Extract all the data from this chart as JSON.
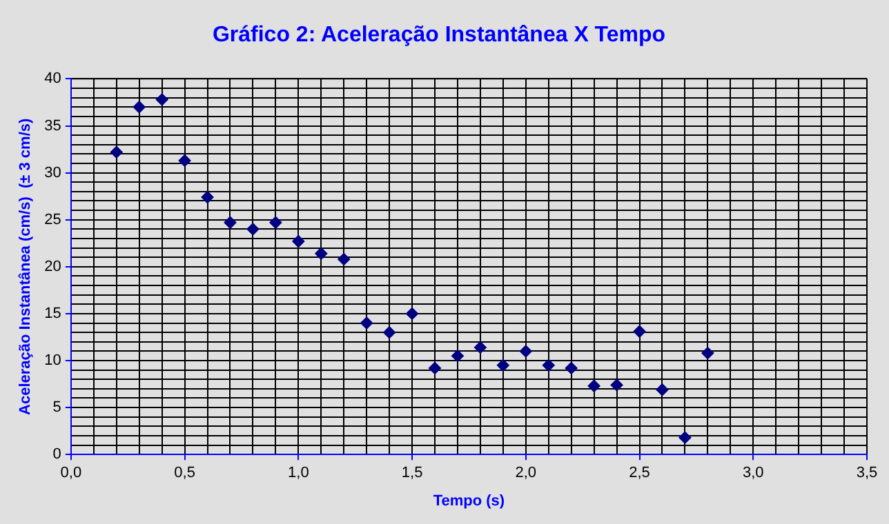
{
  "chart_data": {
    "type": "scatter",
    "title": "Gráfico 2: Aceleração Instantânea X Tempo",
    "xlabel": "Tempo (s)",
    "ylabel": "Aceleração Instantânea (cm/s)  (± 3 cm/s)",
    "x": [
      0.2,
      0.3,
      0.4,
      0.5,
      0.6,
      0.7,
      0.8,
      0.9,
      1.0,
      1.1,
      1.2,
      1.3,
      1.4,
      1.5,
      1.6,
      1.7,
      1.8,
      1.9,
      2.0,
      2.1,
      2.2,
      2.3,
      2.4,
      2.5,
      2.6,
      2.7,
      2.8
    ],
    "series": [
      {
        "color": "#000080",
        "values": [
          32.2,
          37,
          37.8,
          31.3,
          27.4,
          24.7,
          24,
          24.7,
          22.7,
          21.4,
          20.8,
          14,
          13,
          15,
          9.2,
          10.5,
          11.4,
          9.5,
          11,
          9.5,
          9.2,
          7.3,
          7.4,
          13.1,
          6.9,
          1.8,
          10.8
        ]
      }
    ],
    "xlim": [
      0,
      3.5
    ],
    "xticks": [
      {
        "value": 0,
        "label": "0,0"
      },
      {
        "value": 0.1,
        "label": null
      },
      {
        "value": 0.2,
        "label": null
      },
      {
        "value": 0.3,
        "label": null
      },
      {
        "value": 0.4,
        "label": null
      },
      {
        "value": 0.5,
        "label": "0,5"
      },
      {
        "value": 0.6,
        "label": null
      },
      {
        "value": 0.7,
        "label": null
      },
      {
        "value": 0.8,
        "label": null
      },
      {
        "value": 0.9,
        "label": null
      },
      {
        "value": 1,
        "label": "1,0"
      },
      {
        "value": 1.1,
        "label": null
      },
      {
        "value": 1.2,
        "label": null
      },
      {
        "value": 1.3,
        "label": null
      },
      {
        "value": 1.4,
        "label": null
      },
      {
        "value": 1.5,
        "label": "1,5"
      },
      {
        "value": 1.6,
        "label": null
      },
      {
        "value": 1.7,
        "label": null
      },
      {
        "value": 1.8,
        "label": null
      },
      {
        "value": 1.9,
        "label": null
      },
      {
        "value": 2,
        "label": "2,0"
      },
      {
        "value": 2.1,
        "label": null
      },
      {
        "value": 2.2,
        "label": null
      },
      {
        "value": 2.3,
        "label": null
      },
      {
        "value": 2.4,
        "label": null
      },
      {
        "value": 2.5,
        "label": "2,5"
      },
      {
        "value": 2.6,
        "label": null
      },
      {
        "value": 2.7,
        "label": null
      },
      {
        "value": 2.8,
        "label": null
      },
      {
        "value": 2.9,
        "label": null
      },
      {
        "value": 3,
        "label": "3,0"
      },
      {
        "value": 3.1,
        "label": null
      },
      {
        "value": 3.2,
        "label": null
      },
      {
        "value": 3.3,
        "label": null
      },
      {
        "value": 3.4,
        "label": null
      },
      {
        "value": 3.5,
        "label": "3,5"
      }
    ],
    "ylim": [
      0,
      40
    ],
    "yticks": [
      0,
      {
        "value": 1,
        "label": null
      },
      {
        "value": 2,
        "label": null
      },
      {
        "value": 3,
        "label": null
      },
      {
        "value": 4,
        "label": null
      },
      5,
      {
        "value": 6,
        "label": null
      },
      {
        "value": 7,
        "label": null
      },
      {
        "value": 8,
        "label": null
      },
      {
        "value": 9,
        "label": null
      },
      10,
      {
        "value": 11,
        "label": null
      },
      {
        "value": 12,
        "label": null
      },
      {
        "value": 13,
        "label": null
      },
      {
        "value": 14,
        "label": null
      },
      15,
      {
        "value": 16,
        "label": null
      },
      {
        "value": 17,
        "label": null
      },
      {
        "value": 18,
        "label": null
      },
      {
        "value": 19,
        "label": null
      },
      20,
      {
        "value": 21,
        "label": null
      },
      {
        "value": 22,
        "label": null
      },
      {
        "value": 23,
        "label": null
      },
      {
        "value": 24,
        "label": null
      },
      25,
      {
        "value": 26,
        "label": null
      },
      {
        "value": 27,
        "label": null
      },
      {
        "value": 28,
        "label": null
      },
      {
        "value": 29,
        "label": null
      },
      30,
      {
        "value": 31,
        "label": null
      },
      {
        "value": 32,
        "label": null
      },
      {
        "value": 33,
        "label": null
      },
      {
        "value": 34,
        "label": null
      },
      35,
      {
        "value": 36,
        "label": null
      },
      {
        "value": 37,
        "label": null
      },
      {
        "value": 38,
        "label": null
      },
      {
        "value": 39,
        "label": null
      },
      40
    ],
    "grid": true,
    "marker": "diamond",
    "legend": false
  }
}
